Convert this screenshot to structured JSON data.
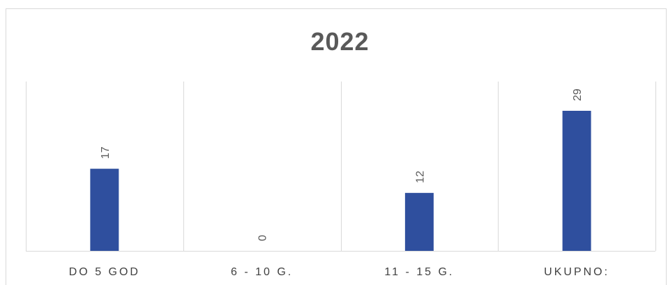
{
  "chart_data": {
    "type": "bar",
    "title": "2022",
    "categories": [
      "DO 5 GOD",
      "6 - 10 G.",
      "11 - 15 G.",
      "UKUPNO:"
    ],
    "values": [
      17,
      0,
      12,
      29
    ],
    "xlabel": "",
    "ylabel": "",
    "ylim": [
      0,
      29
    ],
    "data_labels": "rotated, above bars",
    "grid": "vertical category separators",
    "legend": "none",
    "bar_color": "#2f4f9e"
  }
}
